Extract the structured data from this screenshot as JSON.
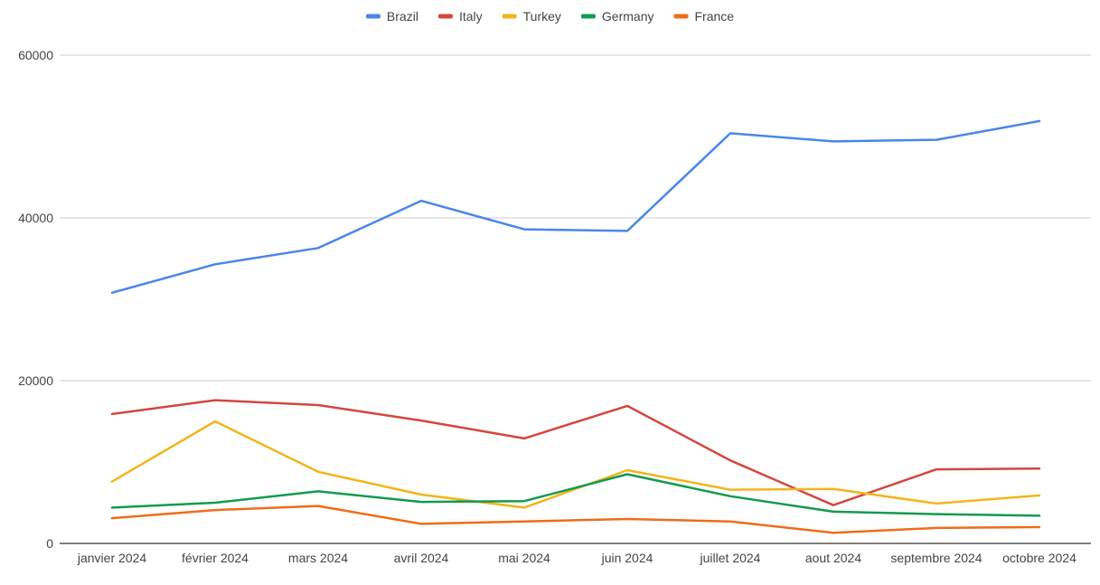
{
  "chart_data": {
    "type": "line",
    "title": "",
    "xlabel": "",
    "ylabel": "",
    "categories": [
      "janvier 2024",
      "février 2024",
      "mars 2024",
      "avril 2024",
      "mai 2024",
      "juin 2024",
      "juillet 2024",
      "aout 2024",
      "septembre 2024",
      "octobre 2024"
    ],
    "ylim": [
      0,
      60000
    ],
    "yticks": [
      0,
      20000,
      40000,
      60000
    ],
    "grid": true,
    "legend_position": "top",
    "series": [
      {
        "name": "Brazil",
        "color": "#4a86e8",
        "values": [
          30800,
          34300,
          36300,
          42100,
          38600,
          38400,
          50400,
          49400,
          49600,
          51900
        ]
      },
      {
        "name": "Italy",
        "color": "#d2473f",
        "values": [
          15900,
          17600,
          17000,
          15100,
          12900,
          16900,
          10200,
          4700,
          9100,
          9200
        ]
      },
      {
        "name": "Turkey",
        "color": "#f2b51b",
        "values": [
          7600,
          15000,
          8800,
          6000,
          4400,
          9000,
          6600,
          6700,
          4900,
          5900
        ]
      },
      {
        "name": "Germany",
        "color": "#139a4f",
        "values": [
          4400,
          5000,
          6400,
          5100,
          5200,
          8500,
          5800,
          3900,
          3600,
          3400
        ]
      },
      {
        "name": "France",
        "color": "#ef6c1a",
        "values": [
          3100,
          4100,
          4600,
          2400,
          2700,
          3000,
          2700,
          1300,
          1900,
          2000
        ]
      }
    ]
  }
}
